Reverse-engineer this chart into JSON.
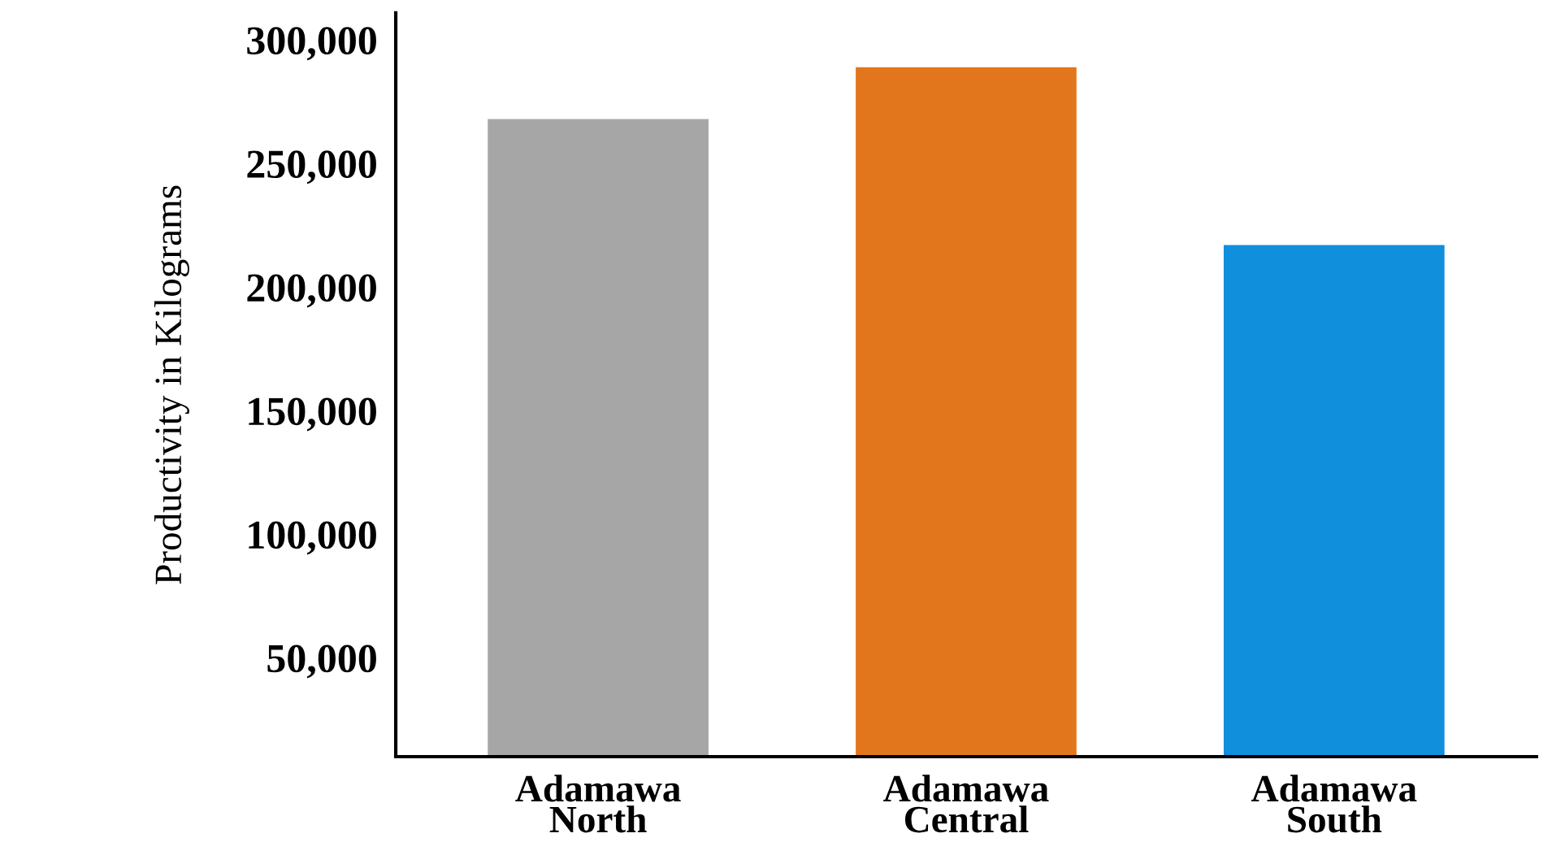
{
  "chart_data": {
    "type": "bar",
    "ylabel": "Productivity in Kilograms",
    "categories": [
      "Adamawa\nNorth",
      "Adamawa\nCentral",
      "Adamawa\nSouth"
    ],
    "values": [
      268000,
      289000,
      217000
    ],
    "colors": [
      "#a6a6a6",
      "#e2761c",
      "#0f8fdc"
    ],
    "ylim": [
      10000,
      311000
    ],
    "yticks": [
      {
        "value": 50000,
        "label": "50,000"
      },
      {
        "value": 100000,
        "label": "100,000"
      },
      {
        "value": 150000,
        "label": "150,000"
      },
      {
        "value": 200000,
        "label": "200,000"
      },
      {
        "value": 250000,
        "label": "250,000"
      },
      {
        "value": 300000,
        "label": "300,000"
      }
    ],
    "grid": false,
    "legend": false
  }
}
